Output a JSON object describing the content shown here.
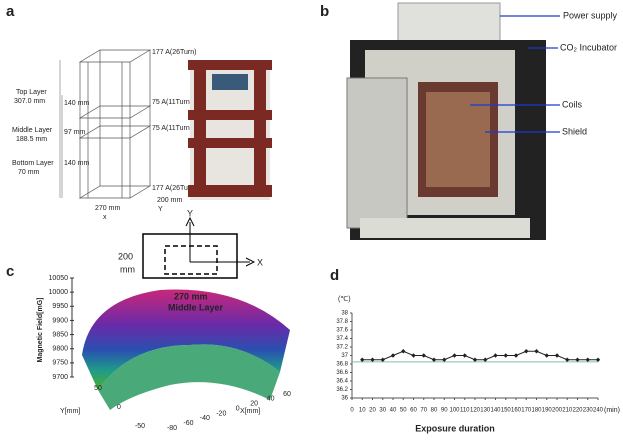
{
  "panel_a": {
    "label": "a",
    "layers": [
      {
        "name": "Top Layer",
        "height": "307.0 mm"
      },
      {
        "name": "Middle Layer",
        "height": "188.5 mm"
      },
      {
        "name": "Bottom Layer",
        "height": "70 mm"
      }
    ],
    "gaps": [
      "140 mm",
      "97 mm",
      "140 mm"
    ],
    "coils": [
      "177 A(26Turn)",
      "75 A(11Turn)",
      "75 A(11Turn)",
      "177 A(26Turn)"
    ],
    "width": "270 mm",
    "depth": "200 mm",
    "x_axis": "x",
    "y_axis": "Y"
  },
  "panel_b": {
    "label": "b",
    "callouts": [
      "Power supply",
      "CO₂ Incubator",
      "Coils",
      "Shield"
    ]
  },
  "panel_c": {
    "label": "c",
    "inset": {
      "y_axis": "Y",
      "x_axis": "X",
      "depth_lines": [
        "200",
        "mm"
      ],
      "width": "270 mm",
      "layer": "Middle Layer"
    },
    "zlabel": "Magnetic Field[mG]",
    "ylabel": "Y[mm]",
    "xlabel": "X[mm]",
    "zticks": [
      9700,
      9750,
      9800,
      9850,
      9900,
      9950,
      10000,
      10050
    ],
    "yticks": [
      -50,
      0,
      50
    ],
    "xticks": [
      -80,
      -60,
      -40,
      -20,
      0,
      20,
      40,
      60
    ]
  },
  "chart_data": {
    "type": "line",
    "label": "d",
    "ylabel": "(℃)",
    "xlabel": "Exposure duration",
    "xunit": "(min)",
    "x": [
      10,
      20,
      30,
      40,
      50,
      60,
      70,
      80,
      90,
      100,
      110,
      120,
      130,
      140,
      150,
      160,
      170,
      180,
      190,
      200,
      210,
      220,
      230,
      240
    ],
    "series": [
      {
        "color": "#222222",
        "values": [
          36.9,
          36.9,
          36.9,
          37.0,
          37.1,
          37.0,
          37.0,
          36.9,
          36.9,
          37.0,
          37.0,
          36.9,
          36.9,
          37.0,
          37.0,
          37.0,
          37.1,
          37.1,
          37.0,
          37.0,
          36.9,
          36.9,
          36.9,
          36.9
        ]
      }
    ],
    "reference_line": {
      "value": 36.85,
      "color": "#7fbfb5"
    },
    "xlim": [
      0,
      240
    ],
    "ylim": [
      36,
      38
    ],
    "xticks": [
      0,
      10,
      20,
      30,
      40,
      50,
      60,
      70,
      80,
      90,
      100,
      110,
      120,
      130,
      140,
      150,
      160,
      170,
      180,
      190,
      200,
      210,
      220,
      230,
      240
    ],
    "yticks": [
      36,
      36.2,
      36.4,
      36.6,
      36.8,
      37,
      37.2,
      37.4,
      37.6,
      37.8,
      38
    ]
  }
}
